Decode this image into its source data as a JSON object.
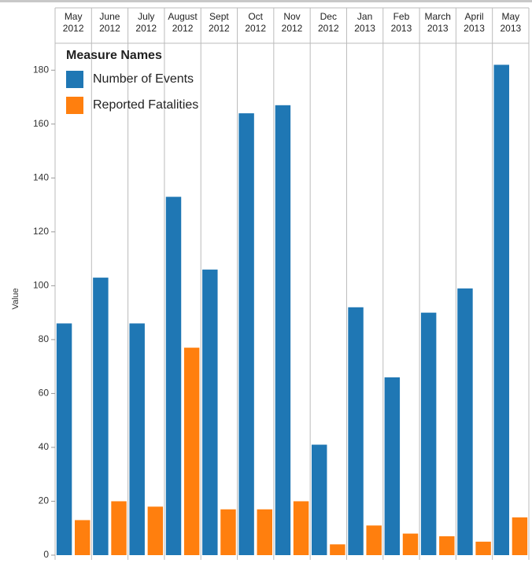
{
  "chart_data": {
    "type": "bar",
    "y_label": "Value",
    "legend_title": "Measure Names",
    "categories": [
      "May 2012",
      "June 2012",
      "July 2012",
      "August 2012",
      "Sept 2012",
      "Oct 2012",
      "Nov 2012",
      "Dec 2012",
      "Jan 2013",
      "Feb 2013",
      "March 2013",
      "April 2013",
      "May 2013"
    ],
    "series": [
      {
        "name": "Number of Events",
        "color": "#1f77b4",
        "values": [
          86,
          103,
          86,
          133,
          106,
          164,
          167,
          41,
          92,
          66,
          90,
          99,
          182
        ]
      },
      {
        "name": "Reported Fatalities",
        "color": "#ff7f0e",
        "values": [
          13,
          20,
          18,
          77,
          17,
          17,
          20,
          4,
          11,
          8,
          7,
          5,
          14
        ]
      }
    ],
    "ylim": [
      0,
      190
    ],
    "yticks": [
      0,
      20,
      40,
      60,
      80,
      100,
      120,
      140,
      160,
      180
    ]
  }
}
